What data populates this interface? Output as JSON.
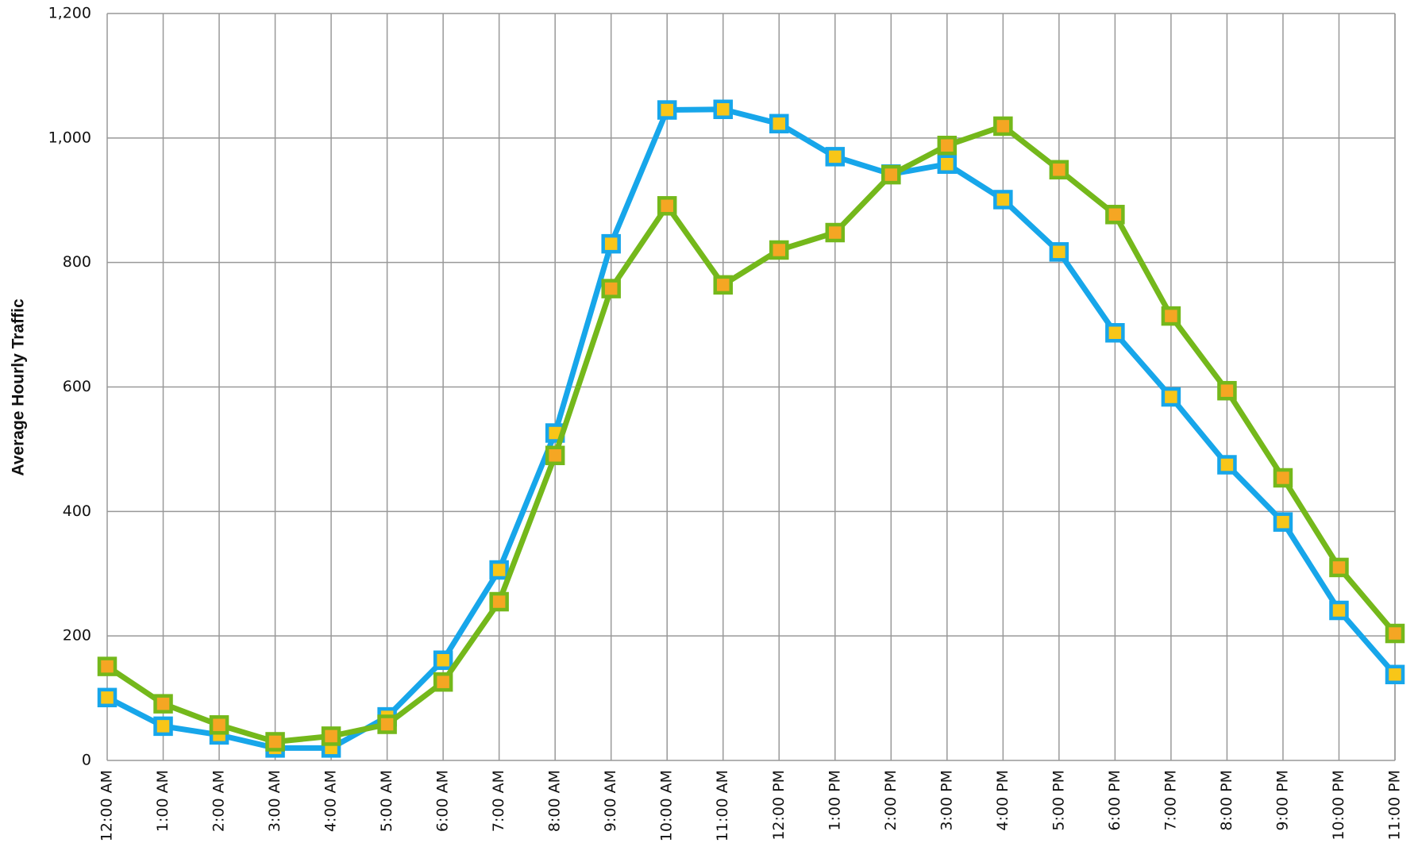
{
  "chart_data": {
    "type": "line",
    "y_label": "Average Hourly Traffic",
    "categories": [
      "12:00 AM",
      "1:00 AM",
      "2:00 AM",
      "3:00 AM",
      "4:00 AM",
      "5:00 AM",
      "6:00 AM",
      "7:00 AM",
      "8:00 AM",
      "9:00 AM",
      "10:00 AM",
      "11:00 AM",
      "12:00 PM",
      "1:00 PM",
      "2:00 PM",
      "3:00 PM",
      "4:00 PM",
      "5:00 PM",
      "6:00 PM",
      "7:00 PM",
      "8:00 PM",
      "9:00 PM",
      "10:00 PM",
      "11:00 PM"
    ],
    "series": [
      {
        "color": "#17a6ea",
        "marker_color": "#f8c618",
        "values": [
          101,
          55,
          41,
          20,
          20,
          70,
          161,
          306,
          526,
          830,
          1045,
          1046,
          1023,
          970,
          942,
          958,
          901,
          817,
          687,
          584,
          475,
          383,
          241,
          138
        ]
      },
      {
        "color": "#74b81b",
        "marker_color": "#f5a623",
        "values": [
          151,
          91,
          57,
          30,
          39,
          58,
          126,
          255,
          490,
          758,
          891,
          764,
          820,
          848,
          941,
          988,
          1019,
          949,
          877,
          714,
          594,
          454,
          310,
          204
        ]
      }
    ],
    "ylim": [
      0,
      1200
    ],
    "yticks": [
      0,
      200,
      400,
      600,
      800,
      {
        "value": 1000,
        "label": "1,000"
      },
      {
        "value": 1200,
        "label": "1,200"
      }
    ],
    "grid": true
  }
}
